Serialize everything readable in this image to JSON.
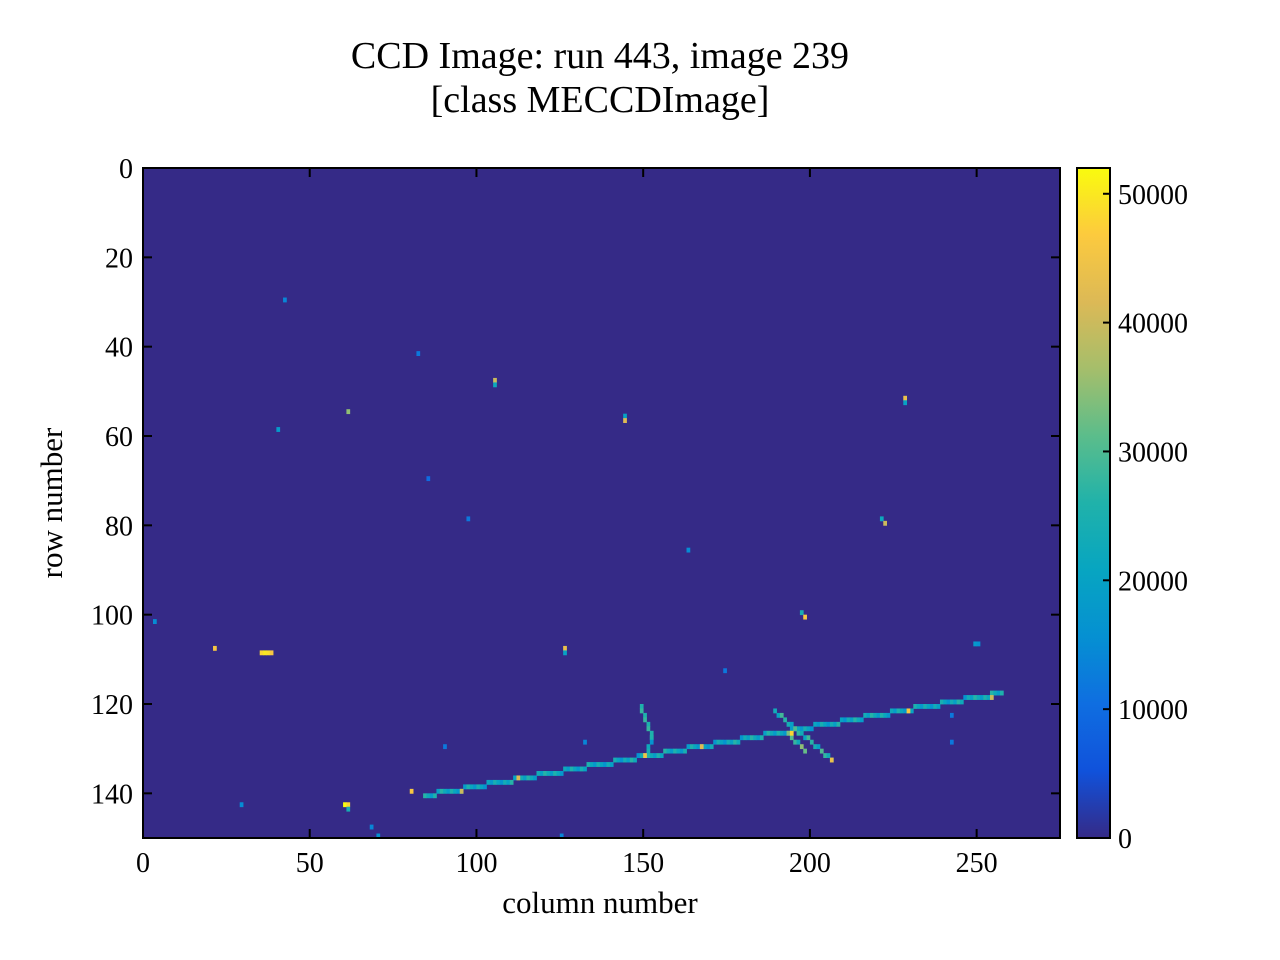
{
  "chart_data": {
    "type": "heatmap",
    "title": [
      "CCD Image: run 443, image 239",
      "[class MECCDImage]"
    ],
    "xlabel": "column number",
    "ylabel": "row number",
    "xlim": [
      0,
      275
    ],
    "ylim": [
      150,
      0
    ],
    "xticks": [
      0,
      50,
      100,
      150,
      200,
      250
    ],
    "yticks": [
      0,
      20,
      40,
      60,
      80,
      100,
      120,
      140
    ],
    "colorbar": {
      "min": 0,
      "max": 52000,
      "ticks": [
        0,
        10000,
        20000,
        30000,
        40000,
        50000
      ],
      "colormap": "parula"
    },
    "background_value": 0,
    "hits": [
      {
        "col": 42,
        "row": 29,
        "value": 14000
      },
      {
        "col": 82,
        "row": 41,
        "value": 12000
      },
      {
        "col": 105,
        "row": 47,
        "value": 40000
      },
      {
        "col": 105,
        "row": 48,
        "value": 22000
      },
      {
        "col": 61,
        "row": 54,
        "value": 35000
      },
      {
        "col": 40,
        "row": 58,
        "value": 18000
      },
      {
        "col": 144,
        "row": 55,
        "value": 20000
      },
      {
        "col": 144,
        "row": 56,
        "value": 42000
      },
      {
        "col": 228,
        "row": 51,
        "value": 44000
      },
      {
        "col": 228,
        "row": 52,
        "value": 20000
      },
      {
        "col": 85,
        "row": 69,
        "value": 10000
      },
      {
        "col": 97,
        "row": 78,
        "value": 12000
      },
      {
        "col": 221,
        "row": 78,
        "value": 22000
      },
      {
        "col": 222,
        "row": 79,
        "value": 40000
      },
      {
        "col": 163,
        "row": 85,
        "value": 15000
      },
      {
        "col": 197,
        "row": 99,
        "value": 24000
      },
      {
        "col": 198,
        "row": 100,
        "value": 46000
      },
      {
        "col": 3,
        "row": 101,
        "value": 15000
      },
      {
        "col": 21,
        "row": 107,
        "value": 46000
      },
      {
        "col": 35,
        "row": 108,
        "value": 48000
      },
      {
        "col": 36,
        "row": 108,
        "value": 50000
      },
      {
        "col": 37,
        "row": 108,
        "value": 49000
      },
      {
        "col": 38,
        "row": 108,
        "value": 46000
      },
      {
        "col": 126,
        "row": 107,
        "value": 44000
      },
      {
        "col": 126,
        "row": 108,
        "value": 20000
      },
      {
        "col": 174,
        "row": 112,
        "value": 12000
      },
      {
        "col": 249,
        "row": 106,
        "value": 18000
      },
      {
        "col": 250,
        "row": 106,
        "value": 16000
      },
      {
        "col": 242,
        "row": 122,
        "value": 12000
      },
      {
        "col": 132,
        "row": 128,
        "value": 14000
      },
      {
        "col": 90,
        "row": 129,
        "value": 12000
      },
      {
        "col": 242,
        "row": 128,
        "value": 12000
      },
      {
        "col": 80,
        "row": 139,
        "value": 46000
      },
      {
        "col": 60,
        "row": 142,
        "value": 52000
      },
      {
        "col": 61,
        "row": 142,
        "value": 48000
      },
      {
        "col": 61,
        "row": 143,
        "value": 24000
      },
      {
        "col": 29,
        "row": 142,
        "value": 15000
      },
      {
        "col": 68,
        "row": 147,
        "value": 14000
      },
      {
        "col": 70,
        "row": 149,
        "value": 16000
      },
      {
        "col": 125,
        "row": 149,
        "value": 14000
      }
    ],
    "tracks": [
      {
        "from": [
          84,
          140
        ],
        "to": [
          257,
          117
        ],
        "value": 22000
      },
      {
        "from": [
          149,
          120
        ],
        "to": [
          152,
          127
        ],
        "value": 24000
      },
      {
        "from": [
          152,
          127
        ],
        "to": [
          150,
          131
        ],
        "value": 22000
      },
      {
        "from": [
          189,
          121
        ],
        "to": [
          206,
          132
        ],
        "value": 26000
      },
      {
        "from": [
          193,
          126
        ],
        "to": [
          198,
          130
        ],
        "value": 30000
      }
    ],
    "bright_spots": [
      {
        "col": 150,
        "row": 131,
        "value": 45000
      },
      {
        "col": 167,
        "row": 129,
        "value": 42000
      },
      {
        "col": 194,
        "row": 126,
        "value": 48000
      },
      {
        "col": 206,
        "row": 132,
        "value": 44000
      },
      {
        "col": 229,
        "row": 121,
        "value": 46000
      },
      {
        "col": 254,
        "row": 118,
        "value": 40000
      },
      {
        "col": 95,
        "row": 139,
        "value": 40000
      },
      {
        "col": 112,
        "row": 136,
        "value": 42000
      }
    ]
  }
}
